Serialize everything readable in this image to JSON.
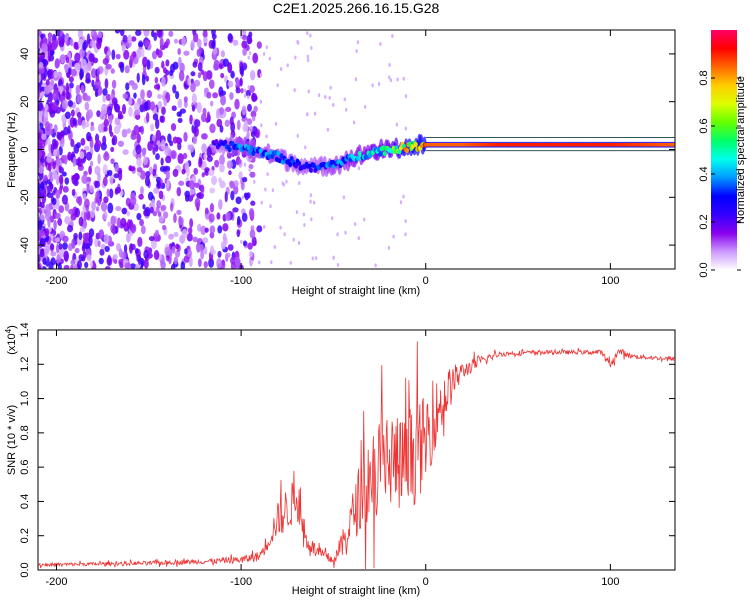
{
  "title": "C2E1.2025.266.16.15.G28",
  "chart_data": [
    {
      "type": "heatmap",
      "name": "spectrogram",
      "xlabel": "Height of straight line (km)",
      "ylabel": "Frequency (Hz)",
      "xlim": [
        -210,
        135
      ],
      "ylim": [
        -50,
        50
      ],
      "xticks": [
        -200,
        -100,
        0,
        100
      ],
      "yticks": [
        -40,
        -20,
        0,
        20,
        40
      ],
      "colorbar": {
        "label": "Normalized spectral amplitude",
        "range": [
          0,
          1
        ],
        "ticks": [
          "0.0",
          "0.2",
          "0.4",
          "0.6",
          "0.8"
        ],
        "colors": [
          "#ffffff",
          "#cc99ff",
          "#8800ee",
          "#3300ff",
          "#0000ff",
          "#0099ff",
          "#00ffee",
          "#00ff66",
          "#66ff00",
          "#ddff00",
          "#ffcc00",
          "#ff6600",
          "#ff0000",
          "#ff0066"
        ]
      },
      "signal_track": {
        "heights": [
          -115,
          -100,
          -90,
          -80,
          -70,
          -60,
          -50,
          -40,
          -30,
          -20,
          -10,
          0,
          20,
          40,
          60,
          80,
          100,
          135
        ],
        "frequencies": [
          2,
          1,
          -1,
          -3,
          -6,
          -8,
          -6,
          -4,
          -1,
          0,
          1,
          2,
          2,
          2,
          2,
          2,
          2,
          2
        ],
        "amplitudes": [
          0.25,
          0.35,
          0.35,
          0.35,
          0.3,
          0.3,
          0.35,
          0.4,
          0.45,
          0.5,
          0.75,
          0.85,
          0.85,
          0.9,
          0.9,
          0.9,
          0.9,
          0.85
        ]
      }
    },
    {
      "type": "line",
      "name": "snr",
      "xlabel": "Height of straight line (km)",
      "ylabel": "SNR (10 * v/v)",
      "scale_label": "(x10",
      "scale_exp": "4",
      "xlim": [
        -210,
        135
      ],
      "ylim": [
        0,
        1.4
      ],
      "xticks": [
        -200,
        -100,
        0,
        100
      ],
      "yticks": [
        "0.0",
        "0.2",
        "0.4",
        "0.6",
        "0.8",
        "1.0",
        "1.2",
        "1.4"
      ],
      "color": "#ee3333",
      "x": [
        -210,
        -180,
        -150,
        -120,
        -100,
        -90,
        -85,
        -80,
        -75,
        -70,
        -65,
        -60,
        -55,
        -50,
        -45,
        -40,
        -35,
        -30,
        -25,
        -20,
        -15,
        -10,
        -5,
        0,
        5,
        10,
        15,
        20,
        30,
        40,
        60,
        80,
        95,
        100,
        105,
        110,
        120,
        135
      ],
      "y": [
        0.03,
        0.035,
        0.04,
        0.05,
        0.06,
        0.08,
        0.18,
        0.3,
        0.35,
        0.42,
        0.18,
        0.12,
        0.08,
        0.06,
        0.15,
        0.3,
        0.45,
        0.55,
        0.62,
        0.65,
        0.62,
        0.6,
        0.7,
        0.75,
        0.9,
        1.0,
        1.1,
        1.16,
        1.22,
        1.26,
        1.27,
        1.27,
        1.27,
        1.2,
        1.28,
        1.25,
        1.24,
        1.23
      ],
      "noise": [
        0.01,
        0.01,
        0.012,
        0.015,
        0.02,
        0.03,
        0.06,
        0.1,
        0.14,
        0.12,
        0.06,
        0.04,
        0.03,
        0.03,
        0.08,
        0.14,
        0.22,
        0.28,
        0.3,
        0.32,
        0.3,
        0.28,
        0.3,
        0.26,
        0.2,
        0.16,
        0.1,
        0.05,
        0.03,
        0.015,
        0.012,
        0.012,
        0.014,
        0.02,
        0.02,
        0.015,
        0.012,
        0.012
      ]
    }
  ]
}
